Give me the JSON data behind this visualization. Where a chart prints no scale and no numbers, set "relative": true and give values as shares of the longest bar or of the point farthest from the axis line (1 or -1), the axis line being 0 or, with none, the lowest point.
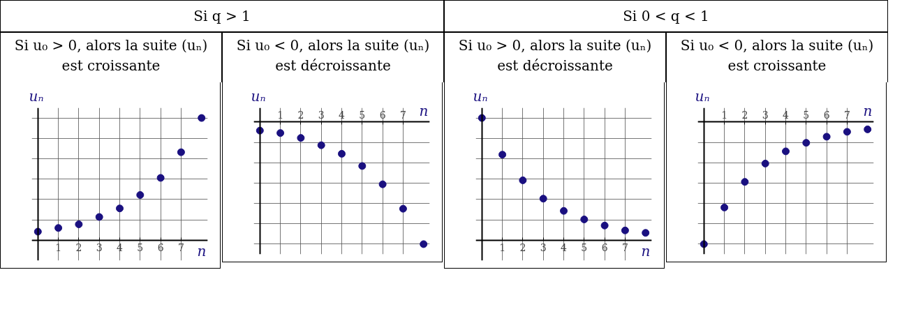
{
  "chart_data": [
    {
      "type": "scatter",
      "title": "Si u₀ > 0, alors la suite (uₙ) est croissante",
      "annotations": [
        "Si q > 1"
      ],
      "xlabel": "n",
      "ylabel": "uₙ",
      "relative": true,
      "grid": true,
      "marker": "circle",
      "color": "#1a1080",
      "x": [
        0,
        1,
        2,
        3,
        4,
        5,
        6,
        7,
        8
      ],
      "values": [
        0.07,
        0.1,
        0.13,
        0.19,
        0.26,
        0.37,
        0.51,
        0.72,
        1
      ],
      "xlim": [
        -0.3,
        8.3
      ],
      "xticks": [
        1,
        2,
        3,
        4,
        5,
        6,
        7
      ]
    },
    {
      "type": "scatter",
      "title": "Si u₀ < 0, alors la suite (uₙ) est décroissante",
      "xlabel": "n",
      "ylabel": "uₙ",
      "relative": true,
      "grid": true,
      "marker": "circle",
      "color": "#1a1080",
      "x": [
        0,
        1,
        2,
        3,
        4,
        5,
        6,
        7,
        8
      ],
      "values": [
        -0.07,
        -0.09,
        -0.13,
        -0.19,
        -0.26,
        -0.36,
        -0.51,
        -0.71,
        -1
      ],
      "xlim": [
        -0.3,
        8.3
      ],
      "xticks": [
        1,
        2,
        3,
        4,
        5,
        6,
        7
      ]
    },
    {
      "type": "scatter",
      "title": "Si u₀ > 0, alors la suite (uₙ) est décroissante",
      "annotations": [
        "Si 0 < q < 1"
      ],
      "xlabel": "n",
      "ylabel": "uₙ",
      "relative": true,
      "grid": true,
      "marker": "circle",
      "color": "#1a1080",
      "x": [
        0,
        1,
        2,
        3,
        4,
        5,
        6,
        7,
        8
      ],
      "values": [
        1,
        0.7,
        0.49,
        0.34,
        0.24,
        0.17,
        0.12,
        0.08,
        0.06
      ],
      "xlim": [
        -0.3,
        8.3
      ],
      "xticks": [
        1,
        2,
        3,
        4,
        5,
        6,
        7
      ]
    },
    {
      "type": "scatter",
      "title": "Si u₀ < 0, alors la suite (uₙ) est croissante",
      "xlabel": "n",
      "ylabel": "uₙ",
      "relative": true,
      "grid": true,
      "marker": "circle",
      "color": "#1a1080",
      "x": [
        0,
        1,
        2,
        3,
        4,
        5,
        6,
        7,
        8
      ],
      "values": [
        -1,
        -0.7,
        -0.49,
        -0.34,
        -0.24,
        -0.17,
        -0.12,
        -0.08,
        -0.06
      ],
      "xlim": [
        -0.3,
        8.3
      ],
      "xticks": [
        1,
        2,
        3,
        4,
        5,
        6,
        7
      ]
    }
  ]
}
